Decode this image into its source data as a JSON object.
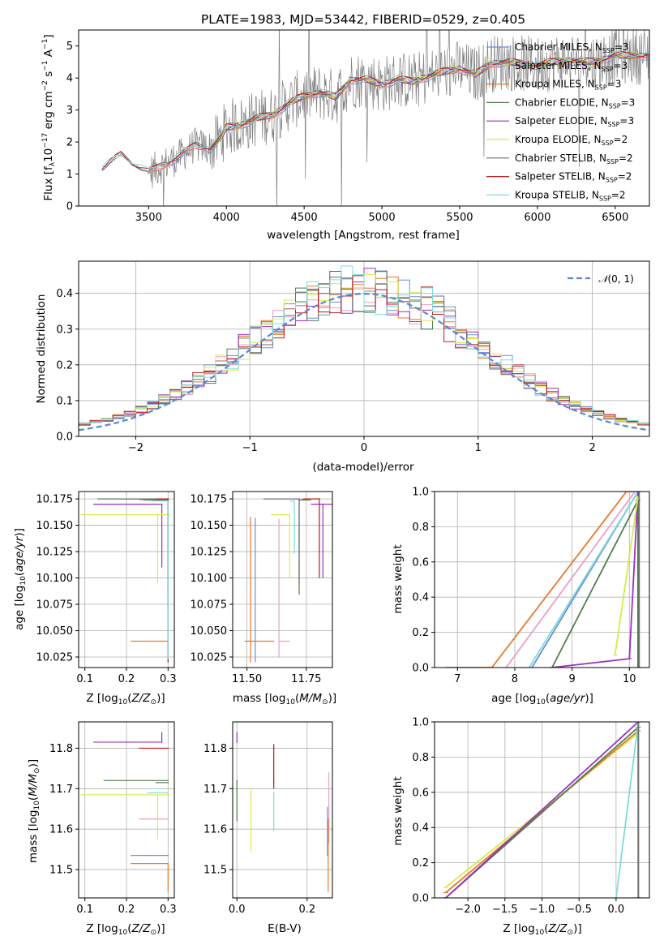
{
  "figure": {
    "title": "PLATE=1983, MJD=53442, FIBERID=0529, z=0.405"
  },
  "colors": {
    "chabrier_miles": "#6a8fd8",
    "salpeter_miles": "#e8a0c8",
    "kroupa_miles": "#e8792a",
    "chabrier_elodie": "#4f7f4f",
    "salpeter_elodie": "#9b30c0",
    "kroupa_elodie": "#d4ec4a",
    "chabrier_stelib": "#6e6e6e",
    "salpeter_stelib": "#c01818",
    "kroupa_stelib": "#7fdcdc",
    "gaussian": "#5b86d6",
    "grid": "#b0b0b0"
  },
  "chart_data": [
    {
      "id": "spectrum",
      "type": "line",
      "title": "PLATE=1983, MJD=53442, FIBERID=0529, z=0.405",
      "xlabel": "wavelength [Angstrom, rest frame]",
      "ylabel": "Flux [f_λ 10^-17 erg cm^-2 s^-1 A^-1]",
      "xlim": [
        3050,
        6720
      ],
      "ylim": [
        0,
        5.5
      ],
      "xticks": [
        3500,
        4000,
        4500,
        5000,
        5500,
        6000,
        6500
      ],
      "yticks": [
        0,
        1,
        2,
        3,
        4,
        5
      ],
      "grid": false,
      "legend_position": "top-right",
      "data": {
        "x": [
          3200,
          3280,
          3320,
          3400,
          3500,
          3600,
          3700,
          3800,
          3900,
          3960,
          4000,
          4100,
          4200,
          4300,
          4400,
          4500,
          4600,
          4700,
          4800,
          4900,
          5000,
          5100,
          5200,
          5300,
          5400,
          5500,
          5600,
          5700,
          5800,
          5900,
          6000,
          6100,
          6200,
          6300,
          6400,
          6500
        ],
        "y": [
          1.15,
          1.45,
          1.6,
          1.3,
          1.05,
          1.3,
          1.55,
          1.9,
          1.8,
          2.1,
          2.45,
          2.55,
          2.75,
          2.85,
          3.2,
          3.45,
          3.55,
          3.4,
          3.95,
          3.95,
          3.8,
          3.95,
          3.9,
          4.05,
          4.2,
          4.3,
          4.1,
          4.45,
          4.5,
          4.45,
          4.4,
          4.5,
          4.55,
          4.5,
          4.55,
          4.7
        ]
      },
      "models": [
        {
          "name": "Chabrier MILES, N_SSP=3",
          "label_main": "Chabrier MILES, N",
          "sub": "SSP",
          "label_tail": "=3",
          "color_key": "chabrier_miles",
          "x_start": 3520
        },
        {
          "name": "Salpeter MILES, N_SSP=3",
          "label_main": "Salpeter MILES, N",
          "sub": "SSP",
          "label_tail": "=3",
          "color_key": "salpeter_miles",
          "x_start": 3520
        },
        {
          "name": "Kroupa MILES, N_SSP=3",
          "label_main": "Kroupa MILES, N",
          "sub": "SSP",
          "label_tail": "=3",
          "color_key": "kroupa_miles",
          "x_start": 3520
        },
        {
          "name": "Chabrier ELODIE, N_SSP=3",
          "label_main": "Chabrier ELODIE, N",
          "sub": "SSP",
          "label_tail": "=3",
          "color_key": "chabrier_elodie",
          "x_start": 3900
        },
        {
          "name": "Salpeter ELODIE, N_SSP=3",
          "label_main": "Salpeter ELODIE, N",
          "sub": "SSP",
          "label_tail": "=3",
          "color_key": "salpeter_elodie",
          "x_start": 3900
        },
        {
          "name": "Kroupa ELODIE, N_SSP=2",
          "label_main": "Kroupa ELODIE, N",
          "sub": "SSP",
          "label_tail": "=2",
          "color_key": "kroupa_elodie",
          "x_start": 3900
        },
        {
          "name": "Chabrier STELIB, N_SSP=2",
          "label_main": "Chabrier STELIB, N",
          "sub": "SSP",
          "label_tail": "=2",
          "color_key": "chabrier_stelib",
          "x_start": 3200
        },
        {
          "name": "Salpeter STELIB, N_SSP=2",
          "label_main": "Salpeter STELIB, N",
          "sub": "SSP",
          "label_tail": "=2",
          "color_key": "salpeter_stelib",
          "x_start": 3200
        },
        {
          "name": "Kroupa STELIB, N_SSP=2",
          "label_main": "Kroupa STELIB, N",
          "sub": "SSP",
          "label_tail": "=2",
          "color_key": "kroupa_stelib",
          "x_start": 3200
        }
      ]
    },
    {
      "id": "residuals",
      "type": "line",
      "xlabel": "(data-model)/error",
      "ylabel": "Normed distribution",
      "xlim": [
        -2.5,
        2.5
      ],
      "ylim": [
        0,
        0.49
      ],
      "xticks": [
        -2,
        -1,
        0,
        1,
        2
      ],
      "yticks": [
        0.0,
        0.1,
        0.2,
        0.3,
        0.4
      ],
      "grid": true,
      "legend_position": "top-right",
      "legend": "N(0,1)",
      "bin_width": 0.1
    },
    {
      "id": "age_vs_Z",
      "type": "scatter",
      "xlabel": "Z [log10(Z/Z⊙)]",
      "ylabel": "age [log10(age/yr)]",
      "xlim": [
        0.085,
        0.315
      ],
      "ylim": [
        10.015,
        10.182
      ],
      "xticks": [
        0.1,
        0.2,
        0.3
      ],
      "yticks": [
        10.025,
        10.05,
        10.075,
        10.1,
        10.125,
        10.15,
        10.175
      ],
      "grid": true,
      "points": [
        {
          "color_key": "chabrier_miles",
          "x": 0.3,
          "y": 10.175,
          "xerr": [
            0.11,
            0.0
          ],
          "yerr": [
            0.1,
            0.0
          ]
        },
        {
          "color_key": "salpeter_miles",
          "x": 0.3,
          "y": 10.174,
          "xerr": [
            0.07,
            0.0
          ],
          "yerr": [
            0.06,
            0.0
          ]
        },
        {
          "color_key": "kroupa_miles",
          "x": 0.3,
          "y": 10.04,
          "xerr": [
            0.09,
            0.0
          ],
          "yerr": [
            0.02,
            0.0
          ]
        },
        {
          "color_key": "chabrier_elodie",
          "x": 0.3,
          "y": 10.174,
          "xerr": [
            0.06,
            0.0
          ],
          "yerr": [
            0.088,
            0.0
          ]
        },
        {
          "color_key": "salpeter_elodie",
          "x": 0.285,
          "y": 10.17,
          "xerr": [
            0.165,
            0.0
          ],
          "yerr": [
            0.06,
            0.0
          ]
        },
        {
          "color_key": "kroupa_elodie",
          "x": 0.275,
          "y": 10.16,
          "xerr": [
            0.185,
            0.03
          ],
          "yerr": [
            0.065,
            0.0
          ]
        },
        {
          "color_key": "chabrier_stelib",
          "x": 0.3,
          "y": 10.175,
          "xerr": [
            0.17,
            0.0
          ],
          "yerr": [
            0.09,
            0.0
          ]
        },
        {
          "color_key": "salpeter_stelib",
          "x": 0.3,
          "y": 10.175,
          "xerr": [
            0.03,
            0.0
          ],
          "yerr": [
            0.155,
            0.0
          ]
        },
        {
          "color_key": "kroupa_stelib",
          "x": 0.3,
          "y": 10.173,
          "xerr": [
            0.04,
            0.0
          ],
          "yerr": [
            0.15,
            0.0
          ]
        }
      ]
    },
    {
      "id": "age_vs_mass",
      "type": "scatter",
      "xlabel": "mass [log10(M/M⊙)]",
      "ylabel": "",
      "xlim": [
        11.44,
        11.86
      ],
      "ylim": [
        10.015,
        10.182
      ],
      "xticks": [
        11.5,
        11.75
      ],
      "yticks": [
        10.025,
        10.05,
        10.075,
        10.1,
        10.125,
        10.15,
        10.175
      ],
      "grid": true,
      "points": [
        {
          "color_key": "chabrier_miles",
          "x": 11.535,
          "y": 10.04,
          "xerr": [
            0.0,
            0.0
          ],
          "yerr": [
            0.02,
            0.117
          ]
        },
        {
          "color_key": "salpeter_miles",
          "x": 11.635,
          "y": 10.04,
          "xerr": [
            0.0,
            0.045
          ],
          "yerr": [
            0.015,
            0.116
          ]
        },
        {
          "color_key": "kroupa_miles",
          "x": 11.515,
          "y": 10.04,
          "xerr": [
            0.025,
            0.1
          ],
          "yerr": [
            0.02,
            0.118
          ]
        },
        {
          "color_key": "chabrier_elodie",
          "x": 11.72,
          "y": 10.174,
          "xerr": [
            0.0,
            0.05
          ],
          "yerr": [
            0.09,
            0.0
          ]
        },
        {
          "color_key": "salpeter_elodie",
          "x": 11.82,
          "y": 10.17,
          "xerr": [
            0.05,
            0.045
          ],
          "yerr": [
            0.07,
            0.0
          ]
        },
        {
          "color_key": "kroupa_elodie",
          "x": 11.68,
          "y": 10.16,
          "xerr": [
            0.08,
            0.0
          ],
          "yerr": [
            0.06,
            0.0
          ]
        },
        {
          "color_key": "chabrier_stelib",
          "x": 11.72,
          "y": 10.175,
          "xerr": [
            0.15,
            0.0
          ],
          "yerr": [
            0.08,
            0.0
          ]
        },
        {
          "color_key": "salpeter_stelib",
          "x": 11.805,
          "y": 10.175,
          "xerr": [
            0.07,
            0.0
          ],
          "yerr": [
            0.075,
            0.0
          ]
        },
        {
          "color_key": "kroupa_stelib",
          "x": 11.7,
          "y": 10.173,
          "xerr": [
            0.02,
            0.0
          ],
          "yerr": [
            0.05,
            0.0
          ]
        }
      ]
    },
    {
      "id": "massweight_vs_age",
      "type": "line",
      "xlabel": "age [log10(age/yr)]",
      "ylabel": "mass weight",
      "xlim": [
        6.6,
        10.35
      ],
      "ylim": [
        0,
        1
      ],
      "xticks": [
        7,
        8,
        9,
        10
      ],
      "yticks": [
        0.0,
        0.2,
        0.4,
        0.6,
        0.8,
        1.0
      ],
      "grid": true,
      "cumulative": [
        {
          "color_key": "kroupa_miles",
          "x": [
            6.8,
            7.6,
            9.95,
            10.05
          ],
          "y": [
            0.0,
            0.0,
            1.0,
            1.0
          ]
        },
        {
          "color_key": "salpeter_miles",
          "x": [
            7.85,
            10.1
          ],
          "y": [
            0.0,
            1.0
          ]
        },
        {
          "color_key": "chabrier_miles",
          "x": [
            8.3,
            10.15
          ],
          "y": [
            0.0,
            1.0
          ]
        },
        {
          "color_key": "kroupa_stelib",
          "x": [
            8.25,
            10.15
          ],
          "y": [
            0.0,
            1.0
          ]
        },
        {
          "color_key": "chabrier_elodie",
          "x": [
            8.65,
            10.15,
            10.15
          ],
          "y": [
            0.0,
            0.95,
            0.0
          ]
        },
        {
          "color_key": "salpeter_elodie",
          "x": [
            8.65,
            10.0,
            10.15
          ],
          "y": [
            0.0,
            0.05,
            1.0
          ]
        },
        {
          "color_key": "kroupa_elodie",
          "x": [
            9.75,
            10.15
          ],
          "y": [
            0.07,
            0.97
          ]
        },
        {
          "color_key": "chabrier_stelib",
          "x": [
            10.17,
            10.17
          ],
          "y": [
            0.0,
            1.0
          ]
        }
      ]
    },
    {
      "id": "mass_vs_Z",
      "type": "scatter",
      "xlabel": "Z [log10(Z/Z⊙)]",
      "ylabel": "mass [log10(M/M⊙)]",
      "xlim": [
        0.085,
        0.315
      ],
      "ylim": [
        11.43,
        11.865
      ],
      "xticks": [
        0.1,
        0.2,
        0.3
      ],
      "yticks": [
        11.5,
        11.6,
        11.7,
        11.8
      ],
      "grid": true,
      "points": [
        {
          "color_key": "chabrier_miles",
          "x": 0.3,
          "y": 11.535,
          "xerr": [
            0.09,
            0.0
          ],
          "yerr": [
            0.0,
            0.0
          ]
        },
        {
          "color_key": "salpeter_miles",
          "x": 0.3,
          "y": 11.625,
          "xerr": [
            0.07,
            0.0
          ],
          "yerr": [
            0.0,
            0.0
          ]
        },
        {
          "color_key": "kroupa_miles",
          "x": 0.3,
          "y": 11.515,
          "xerr": [
            0.09,
            0.0
          ],
          "yerr": [
            0.07,
            0.0
          ]
        },
        {
          "color_key": "chabrier_elodie",
          "x": 0.3,
          "y": 11.72,
          "xerr": [
            0.155,
            0.0
          ],
          "yerr": [
            0.0,
            0.0
          ]
        },
        {
          "color_key": "salpeter_elodie",
          "x": 0.285,
          "y": 11.815,
          "xerr": [
            0.165,
            0.0
          ],
          "yerr": [
            0.0,
            0.025
          ]
        },
        {
          "color_key": "kroupa_elodie",
          "x": 0.275,
          "y": 11.685,
          "xerr": [
            0.185,
            0.03
          ],
          "yerr": [
            0.11,
            0.0
          ]
        },
        {
          "color_key": "chabrier_stelib",
          "x": 0.3,
          "y": 11.715,
          "xerr": [
            0.03,
            0.0
          ],
          "yerr": [
            0.0,
            0.0
          ]
        },
        {
          "color_key": "salpeter_stelib",
          "x": 0.3,
          "y": 11.8,
          "xerr": [
            0.07,
            0.0
          ],
          "yerr": [
            0.0,
            0.0
          ]
        },
        {
          "color_key": "kroupa_stelib",
          "x": 0.3,
          "y": 11.69,
          "xerr": [
            0.05,
            0.0
          ],
          "yerr": [
            0.0,
            0.0
          ]
        }
      ]
    },
    {
      "id": "mass_vs_ebv",
      "type": "scatter",
      "xlabel": "E(B-V)",
      "ylabel": "",
      "xlim": [
        -0.012,
        0.272
      ],
      "ylim": [
        11.43,
        11.865
      ],
      "xticks": [
        0.0,
        0.2
      ],
      "yticks": [
        11.5,
        11.6,
        11.7,
        11.8
      ],
      "grid": true,
      "points": [
        {
          "color_key": "chabrier_miles",
          "x": 0.258,
          "y": 11.535,
          "xerr": [
            0,
            0
          ],
          "yerr": [
            0.0,
            0.12
          ]
        },
        {
          "color_key": "salpeter_miles",
          "x": 0.262,
          "y": 11.625,
          "xerr": [
            0,
            0
          ],
          "yerr": [
            0.06,
            0.115
          ]
        },
        {
          "color_key": "kroupa_miles",
          "x": 0.26,
          "y": 11.515,
          "xerr": [
            0,
            0
          ],
          "yerr": [
            0.07,
            0.11
          ]
        },
        {
          "color_key": "chabrier_elodie",
          "x": 0.0,
          "y": 11.72,
          "xerr": [
            0,
            0
          ],
          "yerr": [
            0.1,
            0.0
          ]
        },
        {
          "color_key": "salpeter_elodie",
          "x": 0.0,
          "y": 11.815,
          "xerr": [
            0,
            0
          ],
          "yerr": [
            0.0,
            0.025
          ]
        },
        {
          "color_key": "kroupa_elodie",
          "x": 0.04,
          "y": 11.685,
          "xerr": [
            0,
            0
          ],
          "yerr": [
            0.14,
            0.015
          ]
        },
        {
          "color_key": "chabrier_stelib",
          "x": 0.105,
          "y": 11.715,
          "xerr": [
            0,
            0
          ],
          "yerr": [
            0.0,
            0.0
          ]
        },
        {
          "color_key": "salpeter_stelib",
          "x": 0.105,
          "y": 11.8,
          "xerr": [
            0,
            0
          ],
          "yerr": [
            0.1,
            0.01
          ]
        },
        {
          "color_key": "kroupa_stelib",
          "x": 0.105,
          "y": 11.69,
          "xerr": [
            0,
            0
          ],
          "yerr": [
            0.095,
            0.0
          ]
        }
      ]
    },
    {
      "id": "massweight_vs_Z",
      "type": "line",
      "xlabel": "Z [log10(Z/Z⊙)]",
      "ylabel": "mass weight",
      "xlim": [
        -2.45,
        0.45
      ],
      "ylim": [
        0,
        1
      ],
      "xticks": [
        -2.0,
        -1.5,
        -1.0,
        -0.5,
        0.0
      ],
      "yticks": [
        0.0,
        0.2,
        0.4,
        0.6,
        0.8,
        1.0
      ],
      "grid": true,
      "cumulative": [
        {
          "color_key": "kroupa_elodie",
          "x": [
            -2.3,
            0.28
          ],
          "y": [
            0.06,
            0.93
          ]
        },
        {
          "color_key": "kroupa_miles",
          "x": [
            -2.3,
            0.3
          ],
          "y": [
            0.03,
            0.95
          ]
        },
        {
          "color_key": "chabrier_elodie",
          "x": [
            -2.3,
            0.3
          ],
          "y": [
            0.0,
            0.97
          ]
        },
        {
          "color_key": "salpeter_elodie",
          "x": [
            -2.3,
            0.3,
            0.3
          ],
          "y": [
            0.0,
            1.0,
            0.0
          ]
        },
        {
          "color_key": "kroupa_stelib",
          "x": [
            0.0,
            0.3,
            0.3
          ],
          "y": [
            0.0,
            1.0,
            0.0
          ]
        },
        {
          "color_key": "chabrier_stelib",
          "x": [
            0.3,
            0.3
          ],
          "y": [
            0.0,
            1.0
          ]
        }
      ]
    }
  ]
}
